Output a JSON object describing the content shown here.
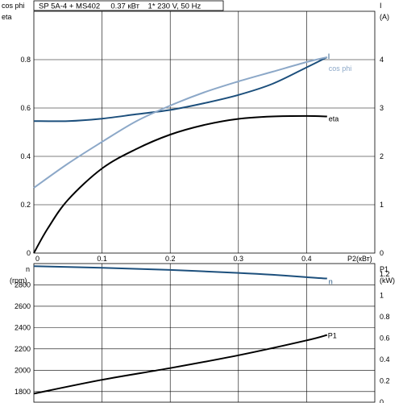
{
  "header": {
    "text": "SP 5A-4 + MS402     0.37 кВт    1* 230 V, 50 Hz"
  },
  "colors": {
    "eta": "#000000",
    "current": "#1c4f7c",
    "cos_phi": "#8ca8c8",
    "speed": "#1c4f7c",
    "power": "#000000",
    "grid": "#000000"
  },
  "chart_data": [
    {
      "type": "line",
      "name": "upper",
      "xlabel": "P2(кВт)",
      "ylabel_left": [
        "cos phi",
        "eta"
      ],
      "ylabel_right": [
        "I",
        "(A)"
      ],
      "xlim": [
        0,
        0.5
      ],
      "ylim_left": [
        0,
        1.0
      ],
      "ylim_right": [
        0,
        5
      ],
      "x_ticks": [
        "0",
        "0.1",
        "0.2",
        "0.3",
        "0.4"
      ],
      "x_tick_values": [
        0,
        0.1,
        0.2,
        0.3,
        0.4
      ],
      "left_ticks": [
        "0",
        "0.2",
        "0.4",
        "0.6",
        "0.8"
      ],
      "left_tick_values": [
        0,
        0.2,
        0.4,
        0.6,
        0.8
      ],
      "right_ticks": [
        "0",
        "1",
        "2",
        "3",
        "4"
      ],
      "right_tick_values": [
        0,
        1,
        2,
        3,
        4
      ],
      "series": [
        {
          "name": "eta",
          "axis": "left",
          "x": [
            0,
            0.02,
            0.05,
            0.1,
            0.15,
            0.2,
            0.25,
            0.3,
            0.35,
            0.4,
            0.43
          ],
          "y": [
            0,
            0.1,
            0.22,
            0.35,
            0.43,
            0.49,
            0.53,
            0.555,
            0.565,
            0.567,
            0.565
          ]
        },
        {
          "name": "I",
          "axis": "right",
          "x": [
            0,
            0.05,
            0.1,
            0.15,
            0.2,
            0.25,
            0.3,
            0.35,
            0.4,
            0.43
          ],
          "y": [
            2.73,
            2.73,
            2.78,
            2.87,
            2.96,
            3.1,
            3.27,
            3.5,
            3.84,
            4.05
          ]
        },
        {
          "name": "cos phi",
          "axis": "left",
          "x": [
            0,
            0.05,
            0.1,
            0.15,
            0.2,
            0.25,
            0.3,
            0.35,
            0.4,
            0.43
          ],
          "y": [
            0.27,
            0.37,
            0.46,
            0.545,
            0.61,
            0.665,
            0.71,
            0.75,
            0.79,
            0.81
          ]
        }
      ]
    },
    {
      "type": "line",
      "name": "lower",
      "ylabel_left": [
        "n",
        "(rpm)"
      ],
      "ylabel_right": [
        "P1",
        "(kW)"
      ],
      "xlim": [
        0,
        0.5
      ],
      "ylim_left": [
        1700,
        3000
      ],
      "ylim_right": [
        0,
        1.3
      ],
      "left_ticks": [
        "1800",
        "2000",
        "2200",
        "2400",
        "2600",
        "2800"
      ],
      "left_tick_values": [
        1800,
        2000,
        2200,
        2400,
        2600,
        2800
      ],
      "right_ticks": [
        "0",
        "0.2",
        "0.4",
        "0.6",
        "0.8",
        "1",
        "1.2"
      ],
      "right_tick_values": [
        0,
        0.2,
        0.4,
        0.6,
        0.8,
        1.0,
        1.2
      ],
      "series": [
        {
          "name": "n",
          "axis": "left",
          "x": [
            0,
            0.1,
            0.2,
            0.3,
            0.35,
            0.4,
            0.43
          ],
          "y": [
            2975,
            2960,
            2940,
            2912,
            2895,
            2872,
            2860
          ]
        },
        {
          "name": "P1",
          "axis": "right",
          "x": [
            0,
            0.1,
            0.2,
            0.3,
            0.4,
            0.43
          ],
          "y": [
            0.08,
            0.21,
            0.32,
            0.44,
            0.58,
            0.63
          ]
        }
      ]
    }
  ]
}
